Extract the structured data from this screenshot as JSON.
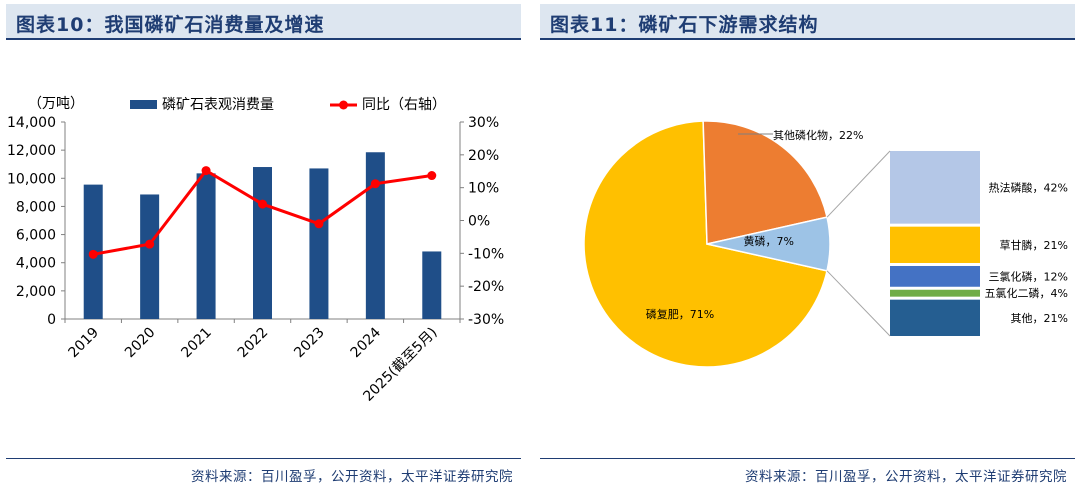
{
  "left_panel": {
    "title": "图表10：我国磷矿石消费量及增速",
    "source": "资料来源：百川盈孚，公开资料，太平洋证券研究院"
  },
  "right_panel": {
    "title": "图表11：磷矿石下游需求结构",
    "source": "资料来源：百川盈孚，公开资料，太平洋证券研究院"
  },
  "chart_data": [
    {
      "type": "bar",
      "unit_label": "（万吨）",
      "categories": [
        "2019",
        "2020",
        "2021",
        "2022",
        "2023",
        "2024",
        "2025(截至5月)"
      ],
      "series": [
        {
          "name": "磷矿石表观消费量",
          "type": "bar",
          "axis": "left",
          "color": "#1f4e88",
          "values": [
            9550,
            8850,
            10350,
            10800,
            10700,
            11850,
            4800
          ]
        },
        {
          "name": "同比（右轴）",
          "type": "line",
          "axis": "right",
          "color": "#ff0000",
          "values": [
            -10.3,
            -7.2,
            15.2,
            5.0,
            -1.0,
            11.2,
            13.7
          ]
        }
      ],
      "left_axis": {
        "min": 0,
        "max": 14000,
        "step": 2000,
        "ticks": [
          "0",
          "2,000",
          "4,000",
          "6,000",
          "8,000",
          "10,000",
          "12,000",
          "14,000"
        ]
      },
      "right_axis": {
        "min": -30,
        "max": 30,
        "step": 10,
        "ticks": [
          "-30%",
          "-20%",
          "-10%",
          "0%",
          "10%",
          "20%",
          "30%"
        ]
      },
      "grid": false,
      "legend_position": "top"
    },
    {
      "type": "pie",
      "slices": [
        {
          "label": "磷复肥",
          "value": 71,
          "display": "磷复肥，71%",
          "color": "#ffc000"
        },
        {
          "label": "其他磷化物",
          "value": 22,
          "display": "其他磷化物，22%",
          "color": "#ed7d31"
        },
        {
          "label": "黄磷",
          "value": 7,
          "display": "黄磷，7%",
          "color": "#9dc3e6"
        }
      ],
      "breakdown_of": "黄磷",
      "breakdown": [
        {
          "label": "热法磷酸",
          "value": 42,
          "display": "热法磷酸，42%",
          "color": "#b4c7e7"
        },
        {
          "label": "草甘膦",
          "value": 21,
          "display": "草甘膦，21%",
          "color": "#ffc000"
        },
        {
          "label": "三氯化磷",
          "value": 12,
          "display": "三氯化磷，12%",
          "color": "#4472c4"
        },
        {
          "label": "五氯化二磷",
          "value": 4,
          "display": "五氯化二磷，4%",
          "color": "#70ad47"
        },
        {
          "label": "其他",
          "value": 21,
          "display": "其他，21%",
          "color": "#255e91"
        }
      ]
    }
  ]
}
